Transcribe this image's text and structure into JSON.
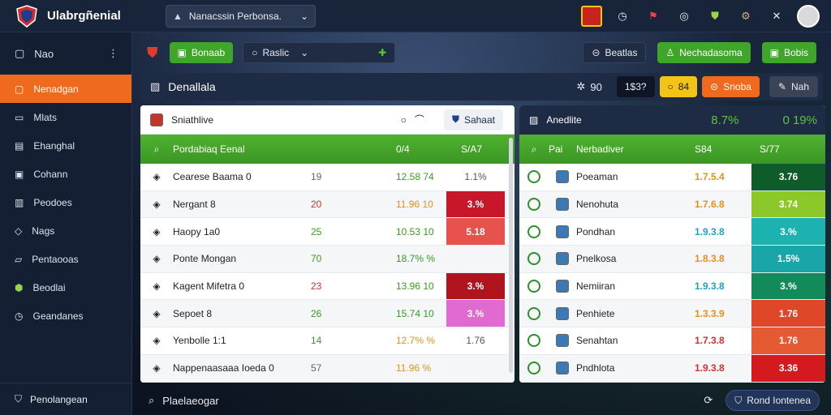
{
  "app": {
    "title": "Ulabrgñenial"
  },
  "top_select": {
    "value": "Nanacssin Perbonsa."
  },
  "sidebar": {
    "header": "Nao",
    "items": [
      {
        "label": "Nenadgan",
        "icon": "shield-icon"
      },
      {
        "label": "Mlats",
        "icon": "document-icon"
      },
      {
        "label": "Ehanghal",
        "icon": "calendar-icon"
      },
      {
        "label": "Cohann",
        "icon": "clipboard-icon"
      },
      {
        "label": "Peodoes",
        "icon": "list-icon"
      },
      {
        "label": "Nags",
        "icon": "tag-icon"
      },
      {
        "label": "Pentaooas",
        "icon": "ticket-icon"
      },
      {
        "label": "Beodlai",
        "icon": "badge-icon"
      },
      {
        "label": "Geandanes",
        "icon": "clock-icon"
      }
    ],
    "footer": "Penolangean"
  },
  "toolbar": {
    "btn1": "Bonaab",
    "select": "Raslic",
    "btn2": "Beatlas",
    "btn3": "Nechadasoma",
    "btn4": "Bobis"
  },
  "section": {
    "title": "Denallala",
    "count": "90",
    "value": "1$3?",
    "yellow": "84",
    "orange": "Snoba",
    "gray": "Nah"
  },
  "left_panel": {
    "search": "Sniathlive",
    "search_btn": "Sahaat",
    "head": {
      "name": "Pordabiaq Eenal",
      "c1": "0/4",
      "c2": "S/A7"
    },
    "rows": [
      {
        "name": "Cearese Baama 0",
        "n": "19",
        "n_color": "gray",
        "v": "12.58 74",
        "v_color": "green",
        "pct": "1.1%",
        "pill": ""
      },
      {
        "name": "Nergant 8",
        "n": "20",
        "n_color": "red",
        "v": "11.96 10",
        "v_color": "orange",
        "pct": "3.%",
        "pill": "#c8162a"
      },
      {
        "name": "Haopy 1a0",
        "n": "25",
        "n_color": "green",
        "v": "10.53 10",
        "v_color": "green",
        "pct": "5.18",
        "pill": "#e8524c"
      },
      {
        "name": "Ponte Mongan",
        "n": "70",
        "n_color": "green",
        "v": "18.7% %",
        "v_color": "green",
        "pct": "",
        "pill": ""
      },
      {
        "name": "Kagent Mifetra 0",
        "n": "23",
        "n_color": "red",
        "v": "13.96 10",
        "v_color": "green",
        "pct": "3.%",
        "pill": "#b0141c"
      },
      {
        "name": "Sepoet 8",
        "n": "26",
        "n_color": "green",
        "v": "15.74 10",
        "v_color": "green",
        "pct": "3.%",
        "pill": "#e06ad0"
      },
      {
        "name": "Yenbolle 1:1",
        "n": "14",
        "n_color": "green",
        "v": "12.7% %",
        "v_color": "orange",
        "pct": "1.76",
        "pill": ""
      },
      {
        "name": "Nappenaasaaa Ioeda 0",
        "n": "57",
        "n_color": "gray",
        "v": "11.96 %",
        "v_color": "orange",
        "pct": "",
        "pill": ""
      }
    ]
  },
  "right_panel": {
    "head_left": "Anedlite",
    "head_val1": "8.7%",
    "head_val2": "0 19%",
    "head": {
      "c0": "Pai",
      "name": "Nerbadiver",
      "c1": "S84",
      "c2": "S/77"
    },
    "rows": [
      {
        "name": "Poeaman",
        "v": "1.7.5.4",
        "v_color": "orange",
        "pct": "3.76",
        "pill": "#0e5c2a"
      },
      {
        "name": "Nenohuta",
        "v": "1.7.6.8",
        "v_color": "orange",
        "pct": "3.74",
        "pill": "#8cc82a"
      },
      {
        "name": "Pondhan",
        "v": "1.9.3.8",
        "v_color": "teal",
        "pct": "3.%",
        "pill": "#1cb2b0"
      },
      {
        "name": "Pnelkosa",
        "v": "1.8.3.8",
        "v_color": "orange",
        "pct": "1.5%",
        "pill": "#1aa6a8"
      },
      {
        "name": "Nemiiran",
        "v": "1.9.3.8",
        "v_color": "teal",
        "pct": "3.%",
        "pill": "#128a5a"
      },
      {
        "name": "Penhiete",
        "v": "1.3.3.9",
        "v_color": "orange",
        "pct": "1.76",
        "pill": "#e04628"
      },
      {
        "name": "Senahtan",
        "v": "1.7.3.8",
        "v_color": "red",
        "pct": "1.76",
        "pill": "#e45a32"
      },
      {
        "name": "Pndhlota",
        "v": "1.9.3.8",
        "v_color": "red",
        "pct": "3.36",
        "pill": "#d41a1e"
      }
    ]
  },
  "bottom": {
    "left": "Plaelaeogar",
    "button": "Rond Iontenea"
  }
}
